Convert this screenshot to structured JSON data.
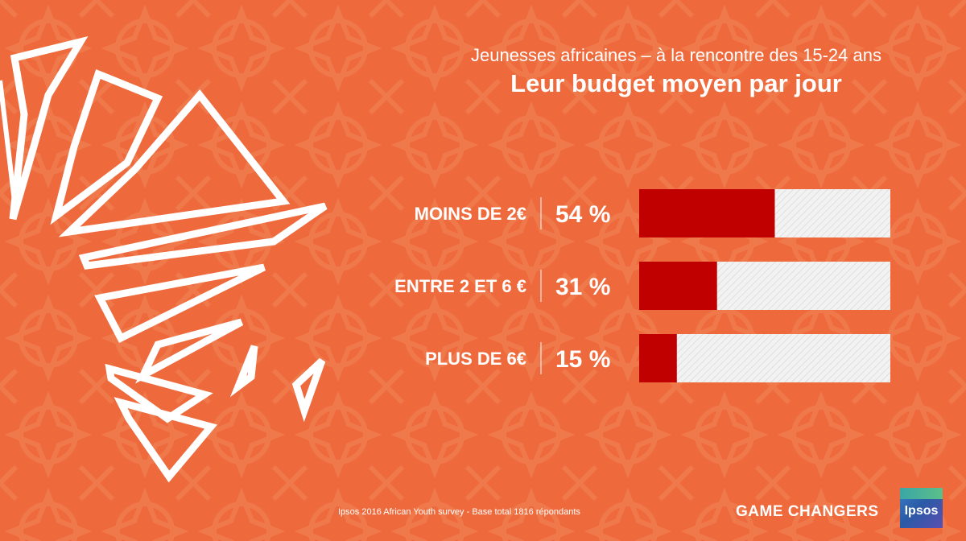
{
  "header": {
    "subtitle": "Jeunesses africaines – à la rencontre des 15-24 ans",
    "title": "Leur budget moyen par jour"
  },
  "chart_data": {
    "type": "bar",
    "orientation": "horizontal",
    "categories": [
      "MOINS DE 2€",
      "ENTRE 2 ET 6 €",
      "PLUS DE 6€"
    ],
    "values": [
      54,
      31,
      15
    ],
    "value_labels": [
      "54 %",
      "31 %",
      "15 %"
    ],
    "xlim": [
      0,
      100
    ],
    "title": "Leur budget moyen par jour",
    "xlabel": "",
    "ylabel": "",
    "grid": false,
    "legend": "none"
  },
  "footer": {
    "source": "Ipsos 2016 African Youth survey  - Base total 1816 répondants",
    "brand": "GAME CHANGERS",
    "logo_text": "Ipsos"
  },
  "colors": {
    "background": "#ee6a3c",
    "bar_fill": "#c00000",
    "bar_track": "#f2f2f2",
    "text": "#ffffff"
  },
  "icons": {
    "background_art": "africa-geometric-outline",
    "pattern": "moroccan-star-lattice"
  }
}
